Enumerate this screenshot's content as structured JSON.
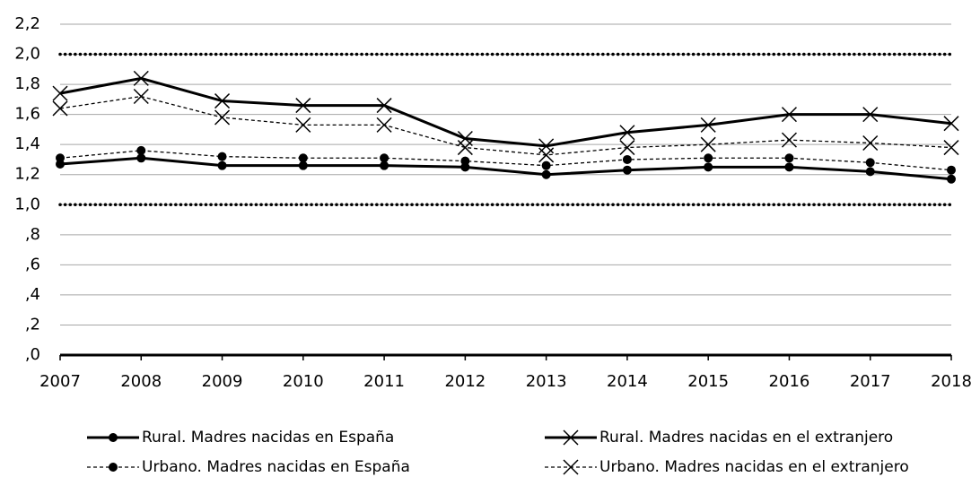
{
  "chart_data": {
    "type": "line",
    "x": [
      2007,
      2008,
      2009,
      2010,
      2011,
      2012,
      2013,
      2014,
      2015,
      2016,
      2017,
      2018
    ],
    "xlim": [
      2007,
      2018
    ],
    "xticks": [
      2007,
      2008,
      2009,
      2010,
      2011,
      2012,
      2013,
      2014,
      2015,
      2016,
      2017,
      2018
    ],
    "ylim": [
      0,
      2.2
    ],
    "yticks": [
      {
        "value": 0,
        "label": ",0"
      },
      {
        "value": 0.2,
        "label": ",2"
      },
      {
        "value": 0.4,
        "label": ",4"
      },
      {
        "value": 0.6,
        "label": ",6"
      },
      {
        "value": 0.8,
        "label": ",8"
      },
      {
        "value": 1.0,
        "label": "1,0"
      },
      {
        "value": 1.2,
        "label": "1,2"
      },
      {
        "value": 1.4,
        "label": "1,4"
      },
      {
        "value": 1.6,
        "label": "1,6"
      },
      {
        "value": 1.8,
        "label": "1,8"
      },
      {
        "value": 2.0,
        "label": "2,0"
      },
      {
        "value": 2.2,
        "label": "2,2"
      }
    ],
    "grid": true,
    "reference_lines": [
      1.0,
      2.0
    ],
    "legend": "bottom",
    "series": [
      {
        "name": "Rural. Madres nacidas en España",
        "color": "#000000",
        "dash": "solid",
        "marker": "circle",
        "values": [
          1.27,
          1.31,
          1.26,
          1.26,
          1.26,
          1.25,
          1.2,
          1.23,
          1.25,
          1.25,
          1.22,
          1.17
        ]
      },
      {
        "name": "Rural. Madres nacidas en el extranjero",
        "color": "#000000",
        "dash": "solid",
        "marker": "x",
        "values": [
          1.74,
          1.84,
          1.69,
          1.66,
          1.66,
          1.44,
          1.39,
          1.48,
          1.53,
          1.6,
          1.6,
          1.54
        ]
      },
      {
        "name": "Urbano. Madres nacidas en España",
        "color": "#000000",
        "dash": "dashed",
        "marker": "circle",
        "values": [
          1.31,
          1.36,
          1.32,
          1.31,
          1.31,
          1.29,
          1.26,
          1.3,
          1.31,
          1.31,
          1.28,
          1.23
        ]
      },
      {
        "name": "Urbano. Madres nacidas en el extranjero",
        "color": "#000000",
        "dash": "dashed",
        "marker": "x",
        "values": [
          1.64,
          1.72,
          1.58,
          1.53,
          1.53,
          1.38,
          1.33,
          1.38,
          1.4,
          1.43,
          1.41,
          1.38
        ]
      }
    ]
  }
}
